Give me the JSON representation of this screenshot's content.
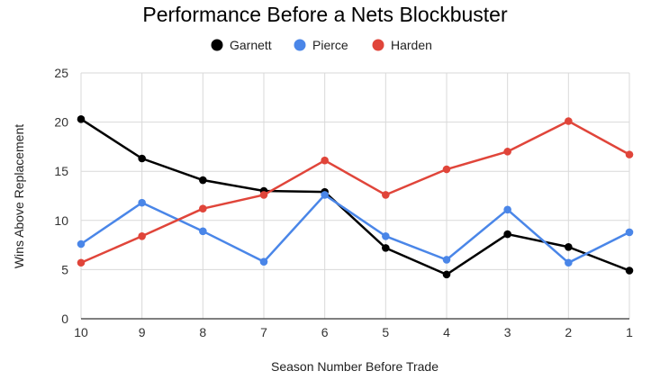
{
  "chart_data": {
    "type": "line",
    "title": "Performance Before a Nets Blockbuster",
    "xlabel": "Season Number Before Trade",
    "ylabel": "Wins Above Replacement",
    "categories": [
      "10",
      "9",
      "8",
      "7",
      "6",
      "5",
      "4",
      "3",
      "2",
      "1"
    ],
    "ylim": [
      0,
      25
    ],
    "yticks": [
      0,
      5,
      10,
      15,
      20,
      25
    ],
    "grid": true,
    "legend_position": "top",
    "series": [
      {
        "name": "Garnett",
        "color": "#000000",
        "values": [
          20.3,
          16.3,
          14.1,
          13.0,
          12.9,
          7.2,
          4.5,
          8.6,
          7.3,
          4.9
        ]
      },
      {
        "name": "Pierce",
        "color": "#4a86e8",
        "values": [
          7.6,
          11.8,
          8.9,
          5.8,
          12.6,
          8.4,
          6.0,
          11.1,
          5.7,
          8.8
        ]
      },
      {
        "name": "Harden",
        "color": "#e0453a",
        "values": [
          5.7,
          8.4,
          11.2,
          12.6,
          16.1,
          12.6,
          15.2,
          17.0,
          20.1,
          16.7
        ]
      }
    ]
  }
}
